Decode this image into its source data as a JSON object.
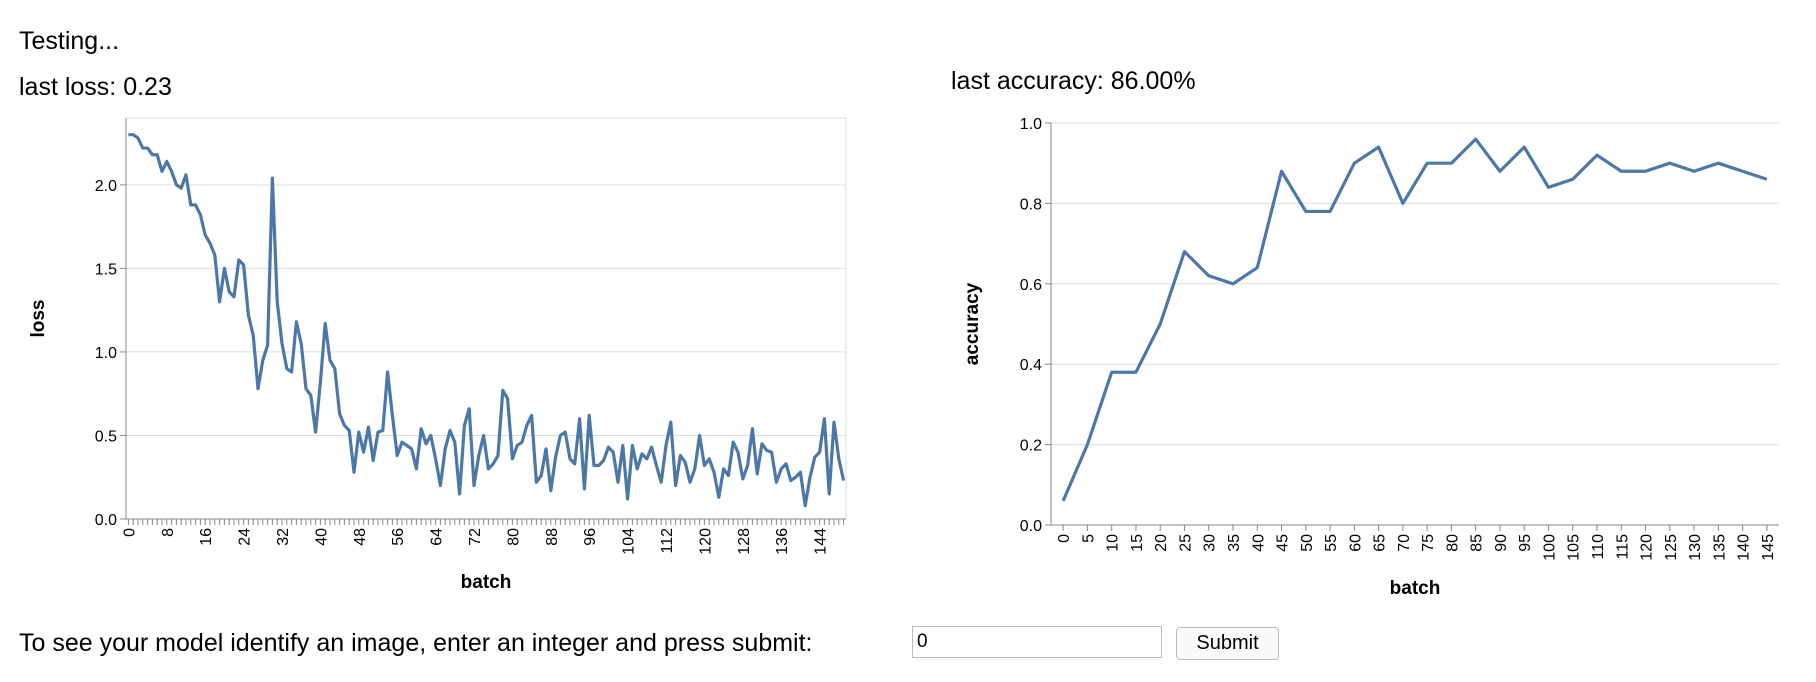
{
  "status": "Testing...",
  "last_loss": "last loss: 0.23",
  "last_accuracy": "last accuracy: 86.00%",
  "prompt": "To see your model identify an image, enter an integer and press submit:",
  "input_value": "0",
  "button": "Submit",
  "chart_data": [
    {
      "type": "line",
      "x_label": "batch",
      "y_label": "loss",
      "color": "#4c78a8",
      "grid": true,
      "categories": [
        0,
        null,
        null,
        null,
        null,
        null,
        null,
        null,
        8,
        null,
        null,
        null,
        null,
        null,
        null,
        null,
        16,
        null,
        null,
        null,
        null,
        null,
        null,
        null,
        24,
        null,
        null,
        null,
        null,
        null,
        null,
        null,
        32,
        null,
        null,
        null,
        null,
        null,
        null,
        null,
        40,
        null,
        null,
        null,
        null,
        null,
        null,
        null,
        48,
        null,
        null,
        null,
        null,
        null,
        null,
        null,
        56,
        null,
        null,
        null,
        null,
        null,
        null,
        null,
        64,
        null,
        null,
        null,
        null,
        null,
        null,
        null,
        72,
        null,
        null,
        null,
        null,
        null,
        null,
        null,
        80,
        null,
        null,
        null,
        null,
        null,
        null,
        null,
        88,
        null,
        null,
        null,
        null,
        null,
        null,
        null,
        96,
        null,
        null,
        null,
        null,
        null,
        null,
        null,
        104,
        null,
        null,
        null,
        null,
        null,
        null,
        null,
        112,
        null,
        null,
        null,
        null,
        null,
        null,
        null,
        120,
        null,
        null,
        null,
        null,
        null,
        null,
        null,
        128,
        null,
        null,
        null,
        null,
        null,
        null,
        null,
        136,
        null,
        null,
        null,
        null,
        null,
        null,
        null,
        144,
        null,
        null,
        null,
        null,
        null
      ],
      "values": [
        2.3,
        2.3,
        2.28,
        2.22,
        2.22,
        2.18,
        2.18,
        2.08,
        2.14,
        2.08,
        2.0,
        1.98,
        2.06,
        1.88,
        1.88,
        1.82,
        1.7,
        1.65,
        1.58,
        1.3,
        1.5,
        1.36,
        1.33,
        1.55,
        1.52,
        1.22,
        1.1,
        0.78,
        0.95,
        1.04,
        2.04,
        1.3,
        1.05,
        0.9,
        0.88,
        1.18,
        1.05,
        0.78,
        0.74,
        0.52,
        0.82,
        1.17,
        0.95,
        0.9,
        0.63,
        0.56,
        0.53,
        0.28,
        0.52,
        0.4,
        0.55,
        0.35,
        0.52,
        0.53,
        0.88,
        0.62,
        0.38,
        0.46,
        0.44,
        0.42,
        0.3,
        0.54,
        0.45,
        0.5,
        0.36,
        0.2,
        0.42,
        0.53,
        0.46,
        0.15,
        0.56,
        0.66,
        0.2,
        0.38,
        0.5,
        0.3,
        0.33,
        0.38,
        0.77,
        0.72,
        0.36,
        0.44,
        0.46,
        0.56,
        0.62,
        0.22,
        0.26,
        0.42,
        0.17,
        0.37,
        0.5,
        0.52,
        0.36,
        0.33,
        0.6,
        0.18,
        0.62,
        0.32,
        0.32,
        0.35,
        0.43,
        0.4,
        0.22,
        0.44,
        0.12,
        0.44,
        0.3,
        0.39,
        0.36,
        0.43,
        0.32,
        0.22,
        0.44,
        0.58,
        0.2,
        0.38,
        0.34,
        0.22,
        0.3,
        0.5,
        0.32,
        0.36,
        0.28,
        0.13,
        0.3,
        0.26,
        0.46,
        0.4,
        0.24,
        0.32,
        0.54,
        0.27,
        0.45,
        0.41,
        0.4,
        0.22,
        0.3,
        0.33,
        0.23,
        0.25,
        0.28,
        0.08,
        0.25,
        0.37,
        0.4,
        0.6,
        0.15,
        0.58,
        0.36,
        0.23
      ],
      "ylim": [
        0,
        2.4
      ],
      "yticks": [
        {
          "value": 0,
          "label": "0.0"
        },
        0.5,
        {
          "value": 1,
          "label": "1.0"
        },
        1.5,
        {
          "value": 2,
          "label": "2.0"
        }
      ]
    },
    {
      "type": "line",
      "x_label": "batch",
      "y_label": "accuracy",
      "color": "#4c78a8",
      "grid": true,
      "categories": [
        0,
        5,
        10,
        15,
        20,
        25,
        30,
        35,
        40,
        45,
        50,
        55,
        60,
        65,
        70,
        75,
        80,
        85,
        90,
        95,
        100,
        105,
        110,
        115,
        120,
        125,
        130,
        135,
        140,
        145
      ],
      "values": [
        0.06,
        0.2,
        0.38,
        0.38,
        0.5,
        0.68,
        0.62,
        0.6,
        0.64,
        0.88,
        0.78,
        0.78,
        0.9,
        0.94,
        0.8,
        0.9,
        0.9,
        0.96,
        0.88,
        0.94,
        0.84,
        0.86,
        0.92,
        0.88,
        0.88,
        0.9,
        0.88,
        0.9,
        0.88,
        0.86
      ],
      "ylim": [
        0,
        1
      ],
      "yticks": [
        {
          "value": 0,
          "label": "0.0"
        },
        0.2,
        0.4,
        0.6,
        0.8,
        {
          "value": 1,
          "label": "1.0"
        }
      ]
    }
  ]
}
